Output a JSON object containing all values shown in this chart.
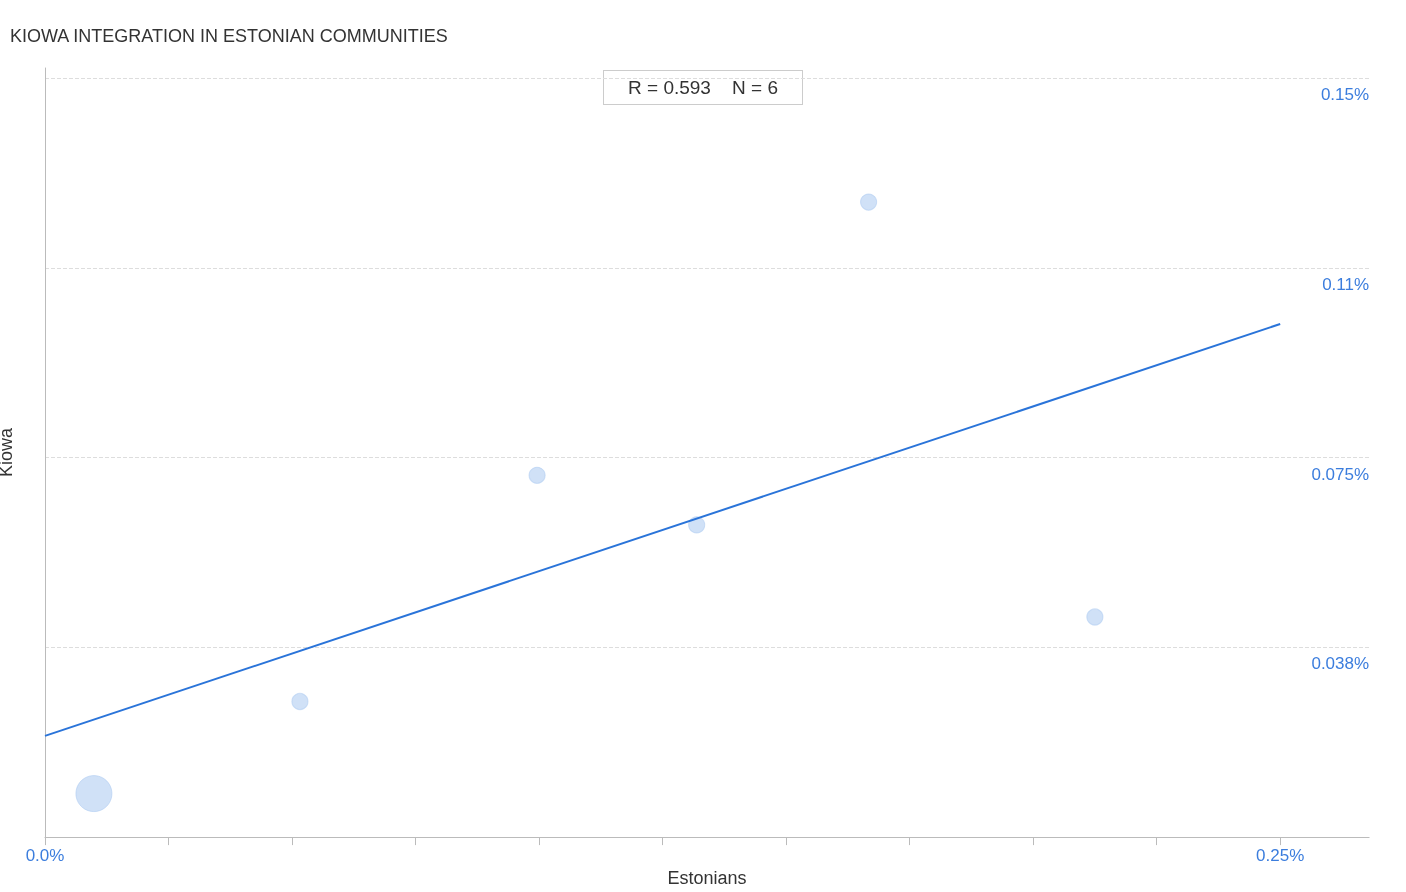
{
  "chart_data": {
    "type": "bubble",
    "title": "KIOWA INTEGRATION IN ESTONIAN COMMUNITIES",
    "xlabel": "Estonians",
    "ylabel": "Kiowa",
    "annotations": [
      "R = 0.593    N = 6"
    ],
    "xlim": [
      0,
      0.268
    ],
    "ylim": [
      0,
      0.152
    ],
    "xticks": [
      {
        "value": 0,
        "label": "0.0%"
      },
      {
        "value": 0.025,
        "label": null
      },
      {
        "value": 0.05,
        "label": null
      },
      {
        "value": 0.075,
        "label": null
      },
      {
        "value": 0.1,
        "label": null
      },
      {
        "value": 0.125,
        "label": null
      },
      {
        "value": 0.15,
        "label": null
      },
      {
        "value": 0.175,
        "label": null
      },
      {
        "value": 0.2,
        "label": null
      },
      {
        "value": 0.225,
        "label": null
      },
      {
        "value": 0.25,
        "label": "0.25%"
      }
    ],
    "yticks": [
      {
        "value": 0.0375,
        "label": "0.038%"
      },
      {
        "value": 0.075,
        "label": "0.075%"
      },
      {
        "value": 0.1125,
        "label": "0.11%"
      },
      {
        "value": 0.15,
        "label": "0.15%"
      }
    ],
    "grid": "y",
    "series": [
      {
        "color": "#a9c8f0",
        "x": [
          0.0099,
          0.0516,
          0.0996,
          0.1319,
          0.1667,
          0.2125
        ],
        "values": [
          0.0086,
          0.0268,
          0.0715,
          0.0617,
          0.1255,
          0.0435
        ],
        "sizes": [
          1,
          0.2,
          0.2,
          0.2,
          0.2,
          0.2
        ]
      },
      {
        "type": "line",
        "color": "#2a74d9",
        "x": [
          0,
          0.25
        ],
        "values": [
          0.02,
          0.1014
        ]
      }
    ]
  }
}
